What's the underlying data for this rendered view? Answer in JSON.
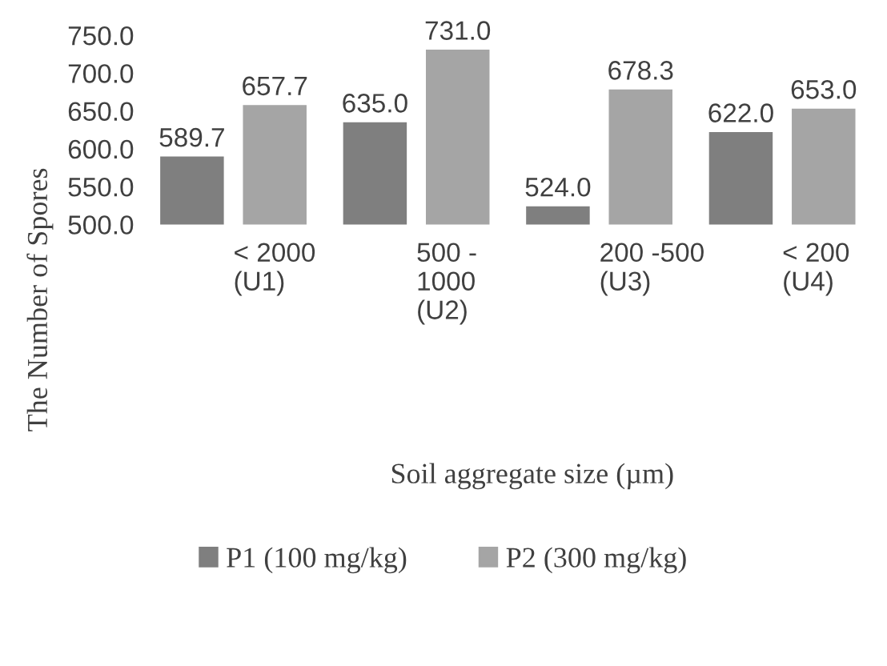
{
  "chart_data": {
    "type": "bar",
    "xlabel": "Soil aggregate size (µm)",
    "ylabel": "The Number of Spores",
    "categories": [
      "< 2000\n(U1)",
      "500 -\n1000\n(U2)",
      "200 -500\n(U3)",
      "< 200\n(U4)"
    ],
    "series": [
      {
        "name": "P1 (100 mg/kg)",
        "color": "#7f7f7f",
        "values": [
          589.7,
          635.0,
          524.0,
          622.0
        ],
        "value_labels": [
          "589.7",
          "635.0",
          "524.0",
          "622.0"
        ]
      },
      {
        "name": "P2 (300 mg/kg)",
        "color": "#a5a5a5",
        "values": [
          657.7,
          731.0,
          678.3,
          653.0
        ],
        "value_labels": [
          "657.7",
          "731.0",
          "678.3",
          "653.0"
        ]
      }
    ],
    "ylim": [
      500,
      750
    ],
    "yticks": [
      {
        "value": 500,
        "label": "500.0"
      },
      {
        "value": 550,
        "label": "550.0"
      },
      {
        "value": 600,
        "label": "600.0"
      },
      {
        "value": 650,
        "label": "650.0"
      },
      {
        "value": 700,
        "label": "700.0"
      },
      {
        "value": 750,
        "label": "750.0"
      }
    ],
    "grid": false,
    "legend": "bottom"
  }
}
